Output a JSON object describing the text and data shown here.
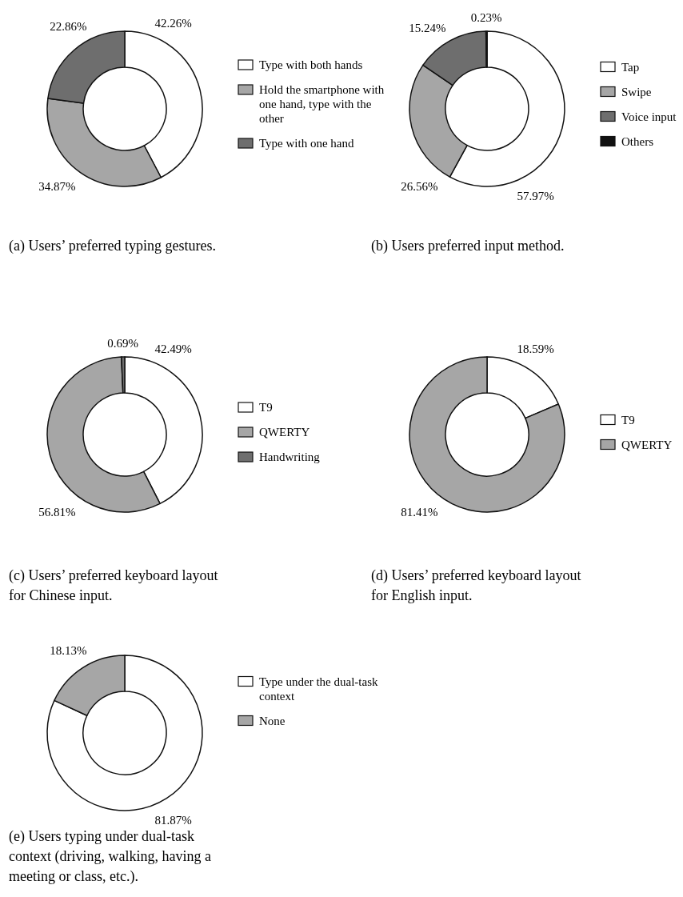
{
  "chart_data": [
    {
      "type": "donut",
      "title": "(a) Users’ preferred typing gestures.",
      "categories": [
        "Type with both hands",
        "Hold the smartphone with one hand, type with the other",
        "Type with one hand"
      ],
      "values": [
        42.26,
        34.87,
        22.86
      ],
      "colors": [
        "#ffffff",
        "#a6a6a6",
        "#6e6e6e"
      ],
      "value_labels": [
        "42.26%",
        "34.87%",
        "22.86%"
      ],
      "legend": "right"
    },
    {
      "type": "donut",
      "title": "(b) Users preferred input method.",
      "categories": [
        "Tap",
        "Swipe",
        "Voice input",
        "Others"
      ],
      "values": [
        57.97,
        26.56,
        15.24,
        0.23
      ],
      "colors": [
        "#ffffff",
        "#a6a6a6",
        "#6e6e6e",
        "#111111"
      ],
      "value_labels": [
        "57.97%",
        "26.56%",
        "15.24%",
        "0.23%"
      ],
      "legend": "right"
    },
    {
      "type": "donut",
      "title": "(c) Users’ preferred keyboard layout for Chinese input.",
      "categories": [
        "T9",
        "QWERTY",
        "Handwriting"
      ],
      "values": [
        42.49,
        56.81,
        0.69
      ],
      "colors": [
        "#ffffff",
        "#a6a6a6",
        "#6e6e6e"
      ],
      "value_labels": [
        "42.49%",
        "56.81%",
        "0.69%"
      ],
      "legend": "right"
    },
    {
      "type": "donut",
      "title": "(d) Users’ preferred keyboard layout for English input.",
      "categories": [
        "T9",
        "QWERTY"
      ],
      "values": [
        18.59,
        81.41
      ],
      "colors": [
        "#ffffff",
        "#a6a6a6"
      ],
      "value_labels": [
        "18.59%",
        "81.41%"
      ],
      "legend": "right"
    },
    {
      "type": "donut",
      "title": "(e) Users typing under dual-task context (driving, walking, having a meeting or class, etc.).",
      "categories": [
        "Type under the dual-task context",
        "None"
      ],
      "values": [
        81.87,
        18.13
      ],
      "colors": [
        "#ffffff",
        "#a6a6a6"
      ],
      "value_labels": [
        "81.87%",
        "18.13%"
      ],
      "legend": "right"
    }
  ]
}
